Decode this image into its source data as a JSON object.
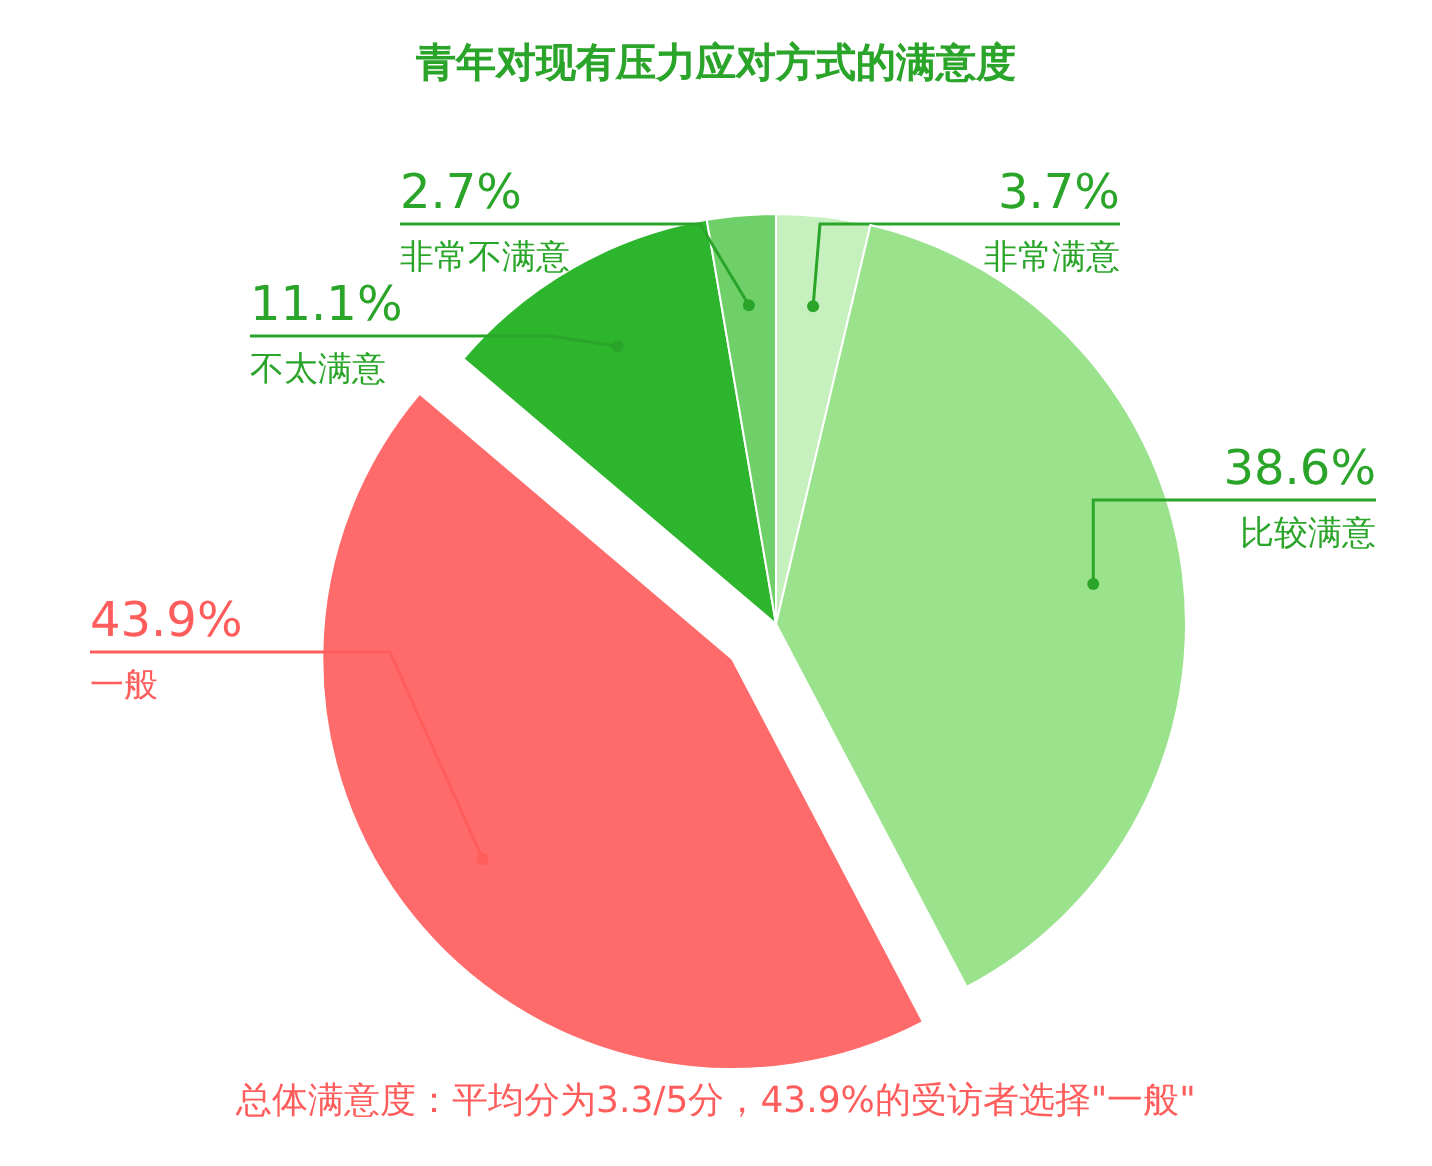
{
  "chart_data": {
    "type": "pie",
    "title": "青年对现有压力应对方式的满意度",
    "categories": [
      "非常满意",
      "比较满意",
      "一般",
      "不太满意",
      "非常不满意"
    ],
    "values": [
      3.7,
      38.6,
      43.9,
      11.1,
      2.7
    ],
    "colors": [
      "#c6f0bd",
      "#9ae38c",
      "#ff6b6b",
      "#2db52d",
      "#6fd06a"
    ],
    "value_labels": [
      "3.7%",
      "38.6%",
      "43.9%",
      "11.1%",
      "2.7%"
    ],
    "annotations": [
      "总体满意度：平均分为3.3/5分，43.9%的受访者选择\"一般\""
    ]
  }
}
